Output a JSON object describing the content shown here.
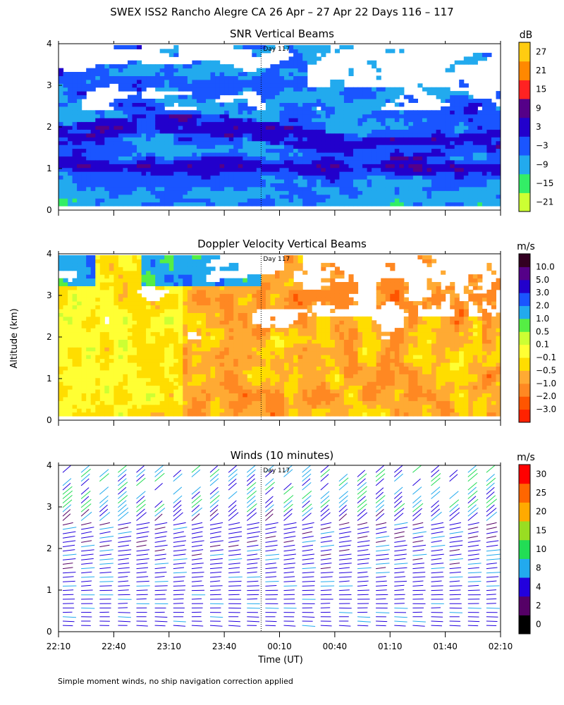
{
  "figure": {
    "title": "SWEX ISS2 Rancho Alegre CA  26 Apr – 27 Apr 22 Days 116 – 117",
    "ylabel": "Altitude (km)",
    "xlabel": "Time (UT)",
    "footnote": "Simple moment winds, no ship navigation correction applied",
    "day_marker_label": "Day 117",
    "day_marker_time": "00:00",
    "x_ticks": [
      "22:10",
      "22:40",
      "23:10",
      "23:40",
      "00:10",
      "00:40",
      "01:10",
      "01:40",
      "02:10"
    ],
    "y_ticks": [
      "0",
      "1",
      "2",
      "3",
      "4"
    ]
  },
  "chart_data": [
    {
      "type": "heatmap",
      "title": "SNR Vertical Beams",
      "x_range": [
        "22:10",
        "02:10"
      ],
      "ylim": [
        0,
        4
      ],
      "colorbar": {
        "unit": "dB",
        "ticks": [
          "27",
          "21",
          "15",
          "9",
          "3",
          "−3",
          "−9",
          "−15",
          "−21"
        ],
        "levels": [
          {
            "min": -24,
            "max": -18,
            "color": "#ccff33"
          },
          {
            "min": -18,
            "max": -12,
            "color": "#33ee66"
          },
          {
            "min": -12,
            "max": -6,
            "color": "#22aaee"
          },
          {
            "min": -6,
            "max": 0,
            "color": "#1a55ff"
          },
          {
            "min": 0,
            "max": 6,
            "color": "#2200cc"
          },
          {
            "min": 6,
            "max": 12,
            "color": "#550088"
          },
          {
            "min": 12,
            "max": 18,
            "color": "#ff2222"
          },
          {
            "min": 18,
            "max": 24,
            "color": "#ff8800"
          },
          {
            "min": 24,
            "max": 30,
            "color": "#ffcc11"
          }
        ]
      }
    },
    {
      "type": "heatmap",
      "title": "Doppler Velocity Vertical Beams",
      "x_range": [
        "22:10",
        "02:10"
      ],
      "ylim": [
        0,
        4
      ],
      "colorbar": {
        "unit": "m/s",
        "ticks": [
          "10.0",
          "5.0",
          "3.0",
          "2.0",
          "1.0",
          "0.5",
          "0.1",
          "−0.1",
          "−0.5",
          "−1.0",
          "−2.0",
          "−3.0"
        ],
        "levels": [
          {
            "label": "< -3.0",
            "color": "#ff2200"
          },
          {
            "label": "-3.0 to -2.0",
            "color": "#ff5500"
          },
          {
            "label": "-2.0 to -1.0",
            "color": "#ff8822"
          },
          {
            "label": "-1.0 to -0.5",
            "color": "#ffaa33"
          },
          {
            "label": "-0.5 to -0.1",
            "color": "#ffdd00"
          },
          {
            "label": "-0.1 to 0.1",
            "color": "#ffff33"
          },
          {
            "label": "0.1 to 0.5",
            "color": "#ccff33"
          },
          {
            "label": "0.5 to 1.0",
            "color": "#55ee44"
          },
          {
            "label": "1.0 to 2.0",
            "color": "#22aaee"
          },
          {
            "label": "2.0 to 3.0",
            "color": "#1a55ff"
          },
          {
            "label": "3.0 to 5.0",
            "color": "#2200cc"
          },
          {
            "label": "5.0 to 10.0",
            "color": "#550088"
          },
          {
            "label": "> 10.0",
            "color": "#330022"
          }
        ]
      }
    },
    {
      "type": "scatter",
      "title": "Winds (10 minutes)",
      "x_range": [
        "22:10",
        "02:10"
      ],
      "ylim": [
        0,
        4
      ],
      "colorbar": {
        "unit": "m/s",
        "ticks": [
          "30",
          "25",
          "20",
          "15",
          "10",
          "8",
          "4",
          "2",
          "0"
        ],
        "levels": [
          {
            "min": 0,
            "max": 2,
            "color": "#000000"
          },
          {
            "min": 2,
            "max": 4,
            "color": "#550066"
          },
          {
            "min": 4,
            "max": 8,
            "color": "#2200dd"
          },
          {
            "min": 8,
            "max": 10,
            "color": "#22aaee"
          },
          {
            "min": 10,
            "max": 15,
            "color": "#22dd55"
          },
          {
            "min": 15,
            "max": 20,
            "color": "#99dd22"
          },
          {
            "min": 20,
            "max": 25,
            "color": "#ffaa00"
          },
          {
            "min": 25,
            "max": 30,
            "color": "#ff6600"
          },
          {
            "min": 30,
            "max": 35,
            "color": "#ff0000"
          }
        ]
      }
    }
  ]
}
